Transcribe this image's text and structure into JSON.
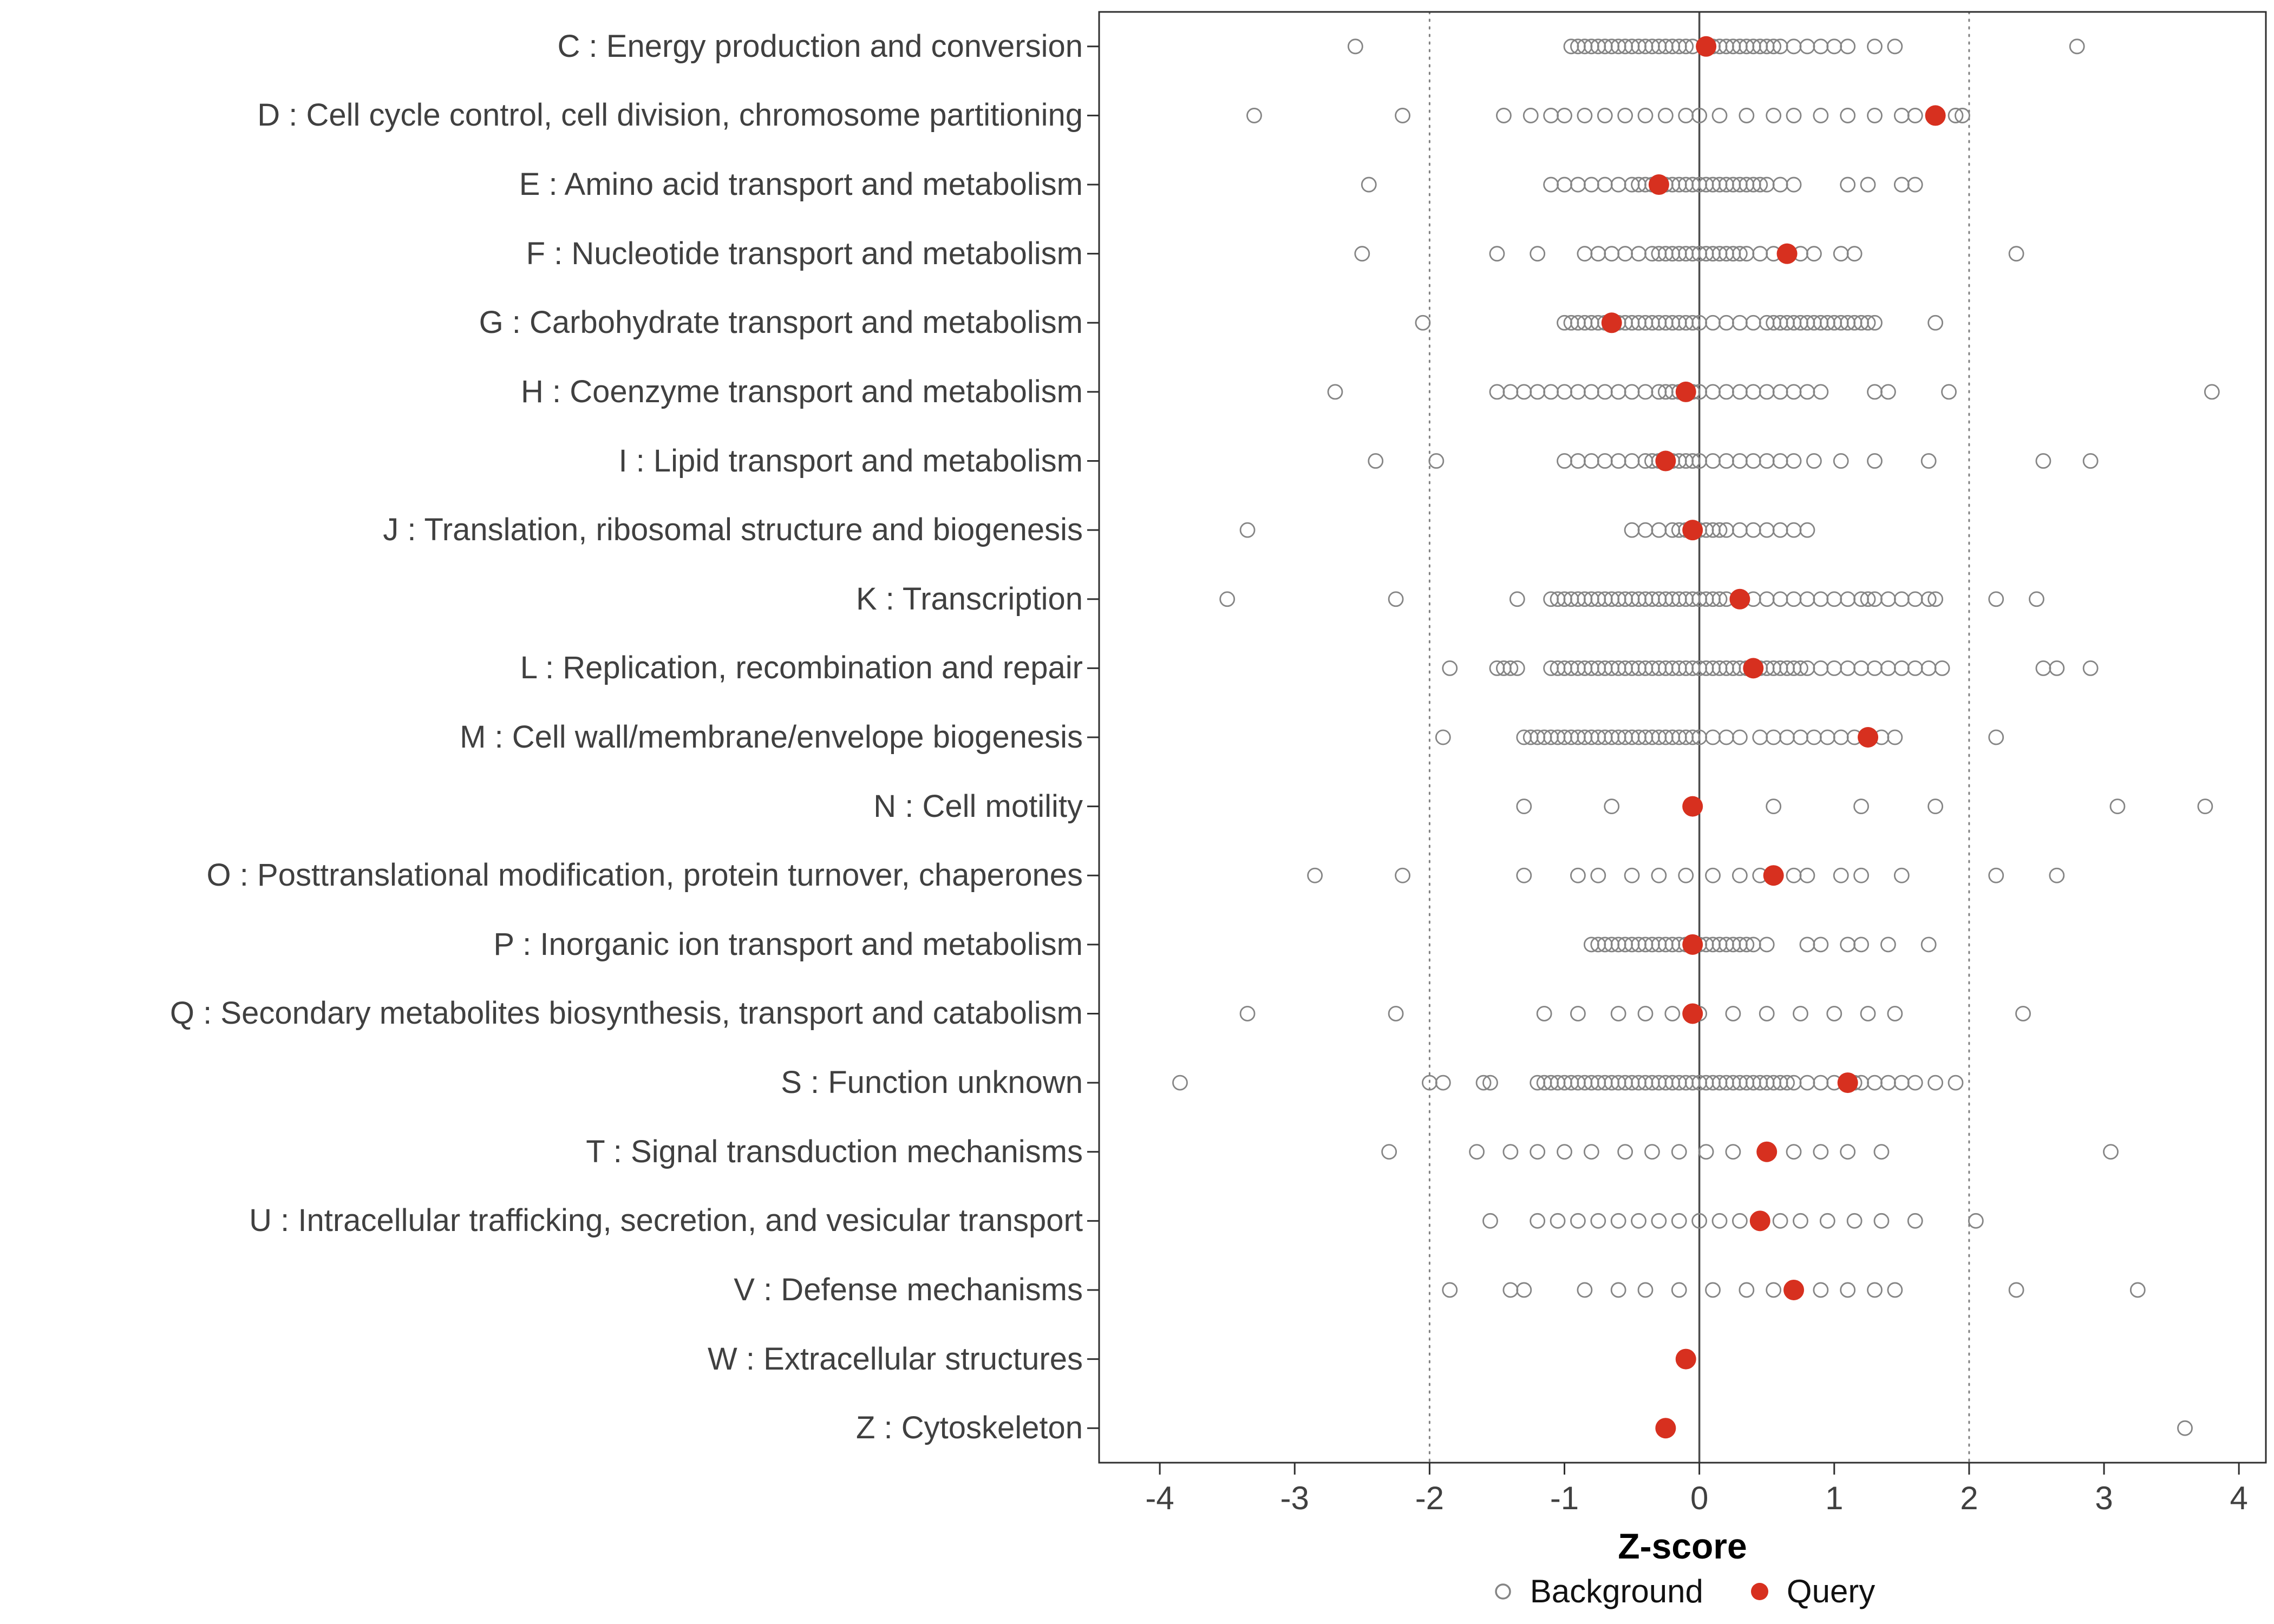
{
  "chart_data": {
    "type": "scatter",
    "title": "",
    "xlabel": "Z-score",
    "ylabel": "",
    "xlim": [
      -4.45,
      4.2
    ],
    "x_ticks": [
      -4,
      -3,
      -2,
      -1,
      0,
      1,
      2,
      3,
      4
    ],
    "reference_lines": {
      "solid": [
        0
      ],
      "dotted": [
        -2,
        2
      ]
    },
    "legend_position": "bottom",
    "grid": "off",
    "colors": {
      "background_point": "#858585",
      "query_point": "#d7301f",
      "reference_line": "#808080",
      "zero_line": "#4a4a4a",
      "panel_border": "#2f2f2f"
    },
    "categories": [
      "C : Energy production and conversion",
      "D : Cell cycle control, cell division, chromosome partitioning",
      "E : Amino acid transport and metabolism",
      "F : Nucleotide transport and metabolism",
      "G : Carbohydrate transport and metabolism",
      "H : Coenzyme transport and metabolism",
      "I : Lipid transport and metabolism",
      "J : Translation, ribosomal structure and biogenesis",
      "K : Transcription",
      "L : Replication, recombination and repair",
      "M : Cell wall/membrane/envelope biogenesis",
      "N : Cell motility",
      "O : Posttranslational modification, protein turnover, chaperones",
      "P : Inorganic ion transport and metabolism",
      "Q : Secondary metabolites biosynthesis, transport and catabolism",
      "S : Function unknown",
      "T : Signal transduction mechanisms",
      "U : Intracellular trafficking, secretion, and vesicular transport",
      "V : Defense mechanisms",
      "W : Extracellular structures",
      "Z : Cytoskeleton"
    ],
    "series": [
      {
        "name": "Background",
        "marker": "open-circle",
        "color": "#858585",
        "points_by_category": [
          [
            -2.55,
            -0.95,
            -0.9,
            -0.85,
            -0.8,
            -0.75,
            -0.7,
            -0.65,
            -0.6,
            -0.55,
            -0.5,
            -0.45,
            -0.4,
            -0.35,
            -0.3,
            -0.25,
            -0.2,
            -0.15,
            -0.1,
            -0.05,
            0.1,
            0.15,
            0.2,
            0.25,
            0.3,
            0.35,
            0.4,
            0.45,
            0.5,
            0.55,
            0.6,
            0.7,
            0.8,
            0.9,
            1.0,
            1.1,
            1.3,
            1.45,
            2.8
          ],
          [
            -3.3,
            -2.2,
            -1.45,
            -1.25,
            -1.1,
            -1.0,
            -0.85,
            -0.7,
            -0.55,
            -0.4,
            -0.25,
            -0.1,
            0.0,
            0.15,
            0.35,
            0.55,
            0.7,
            0.9,
            1.1,
            1.3,
            1.5,
            1.6,
            1.9,
            1.95
          ],
          [
            -2.45,
            -1.1,
            -1.0,
            -0.9,
            -0.8,
            -0.7,
            -0.6,
            -0.5,
            -0.45,
            -0.4,
            -0.35,
            -0.25,
            -0.2,
            -0.15,
            -0.1,
            -0.05,
            0.0,
            0.05,
            0.1,
            0.15,
            0.2,
            0.25,
            0.3,
            0.35,
            0.4,
            0.45,
            0.5,
            0.6,
            0.7,
            1.1,
            1.25,
            1.5,
            1.6
          ],
          [
            -2.5,
            -1.5,
            -1.2,
            -0.85,
            -0.75,
            -0.65,
            -0.55,
            -0.45,
            -0.35,
            -0.3,
            -0.25,
            -0.2,
            -0.15,
            -0.1,
            -0.05,
            0.0,
            0.05,
            0.1,
            0.15,
            0.2,
            0.25,
            0.3,
            0.35,
            0.45,
            0.55,
            0.75,
            0.85,
            1.05,
            1.15,
            2.35
          ],
          [
            -2.05,
            -1.0,
            -0.95,
            -0.9,
            -0.85,
            -0.8,
            -0.75,
            -0.7,
            -0.6,
            -0.55,
            -0.5,
            -0.45,
            -0.4,
            -0.35,
            -0.3,
            -0.25,
            -0.2,
            -0.15,
            -0.1,
            -0.05,
            0.0,
            0.1,
            0.2,
            0.3,
            0.4,
            0.5,
            0.55,
            0.6,
            0.65,
            0.7,
            0.75,
            0.8,
            0.85,
            0.9,
            0.95,
            1.0,
            1.05,
            1.1,
            1.15,
            1.2,
            1.25,
            1.3,
            1.75
          ],
          [
            -2.7,
            -1.5,
            -1.4,
            -1.3,
            -1.2,
            -1.1,
            -1.0,
            -0.9,
            -0.8,
            -0.7,
            -0.6,
            -0.5,
            -0.4,
            -0.3,
            -0.25,
            -0.2,
            -0.15,
            -0.05,
            0.0,
            0.1,
            0.2,
            0.3,
            0.4,
            0.5,
            0.6,
            0.7,
            0.8,
            0.9,
            1.3,
            1.4,
            1.85,
            3.8
          ],
          [
            -2.4,
            -1.95,
            -1.0,
            -0.9,
            -0.8,
            -0.7,
            -0.6,
            -0.5,
            -0.4,
            -0.35,
            -0.3,
            -0.2,
            -0.15,
            -0.1,
            -0.05,
            0.0,
            0.1,
            0.2,
            0.3,
            0.4,
            0.5,
            0.6,
            0.7,
            0.85,
            1.05,
            1.3,
            1.7,
            2.55,
            2.9
          ],
          [
            -3.35,
            -0.5,
            -0.4,
            -0.3,
            -0.2,
            -0.15,
            -0.1,
            0.0,
            0.05,
            0.1,
            0.15,
            0.2,
            0.3,
            0.4,
            0.5,
            0.6,
            0.7,
            0.8
          ],
          [
            -3.5,
            -2.25,
            -1.35,
            -1.1,
            -1.05,
            -1.0,
            -0.95,
            -0.9,
            -0.85,
            -0.8,
            -0.75,
            -0.7,
            -0.65,
            -0.6,
            -0.55,
            -0.5,
            -0.45,
            -0.4,
            -0.35,
            -0.3,
            -0.25,
            -0.2,
            -0.15,
            -0.1,
            -0.05,
            0.0,
            0.05,
            0.1,
            0.15,
            0.2,
            0.4,
            0.5,
            0.6,
            0.7,
            0.8,
            0.9,
            1.0,
            1.1,
            1.2,
            1.25,
            1.3,
            1.4,
            1.5,
            1.6,
            1.7,
            1.75,
            2.2,
            2.5
          ],
          [
            -1.85,
            -1.5,
            -1.45,
            -1.4,
            -1.35,
            -1.1,
            -1.05,
            -1.0,
            -0.95,
            -0.9,
            -0.85,
            -0.8,
            -0.75,
            -0.7,
            -0.65,
            -0.6,
            -0.55,
            -0.5,
            -0.45,
            -0.4,
            -0.35,
            -0.3,
            -0.25,
            -0.2,
            -0.15,
            -0.1,
            -0.05,
            0.0,
            0.05,
            0.1,
            0.15,
            0.2,
            0.25,
            0.3,
            0.35,
            0.45,
            0.5,
            0.55,
            0.6,
            0.65,
            0.7,
            0.75,
            0.8,
            0.9,
            1.0,
            1.1,
            1.2,
            1.3,
            1.4,
            1.5,
            1.6,
            1.7,
            1.8,
            2.55,
            2.65,
            2.9
          ],
          [
            -1.9,
            -1.3,
            -1.25,
            -1.2,
            -1.15,
            -1.1,
            -1.05,
            -1.0,
            -0.95,
            -0.9,
            -0.85,
            -0.8,
            -0.75,
            -0.7,
            -0.65,
            -0.6,
            -0.55,
            -0.5,
            -0.45,
            -0.4,
            -0.35,
            -0.3,
            -0.25,
            -0.2,
            -0.15,
            -0.1,
            -0.05,
            0.0,
            0.1,
            0.2,
            0.3,
            0.45,
            0.55,
            0.65,
            0.75,
            0.85,
            0.95,
            1.05,
            1.15,
            1.35,
            1.45,
            2.2
          ],
          [
            -1.3,
            -0.65,
            0.55,
            1.2,
            1.75,
            3.1,
            3.75
          ],
          [
            -2.85,
            -2.2,
            -1.3,
            -0.9,
            -0.75,
            -0.5,
            -0.3,
            -0.1,
            0.1,
            0.3,
            0.45,
            0.7,
            0.8,
            1.05,
            1.2,
            1.5,
            2.2,
            2.65
          ],
          [
            -0.8,
            -0.75,
            -0.7,
            -0.65,
            -0.6,
            -0.55,
            -0.5,
            -0.45,
            -0.4,
            -0.35,
            -0.3,
            -0.25,
            -0.2,
            -0.15,
            -0.1,
            0.0,
            0.05,
            0.1,
            0.15,
            0.2,
            0.25,
            0.3,
            0.35,
            0.4,
            0.5,
            0.8,
            0.9,
            1.1,
            1.2,
            1.4,
            1.7
          ],
          [
            -3.35,
            -2.25,
            -1.15,
            -0.9,
            -0.6,
            -0.4,
            -0.2,
            0.0,
            0.25,
            0.5,
            0.75,
            1.0,
            1.25,
            1.45,
            2.4
          ],
          [
            -3.85,
            -2.0,
            -1.9,
            -1.6,
            -1.55,
            -1.2,
            -1.15,
            -1.1,
            -1.05,
            -1.0,
            -0.95,
            -0.9,
            -0.85,
            -0.8,
            -0.75,
            -0.7,
            -0.65,
            -0.6,
            -0.55,
            -0.5,
            -0.45,
            -0.4,
            -0.35,
            -0.3,
            -0.25,
            -0.2,
            -0.15,
            -0.1,
            -0.05,
            0.0,
            0.05,
            0.1,
            0.15,
            0.2,
            0.25,
            0.3,
            0.35,
            0.4,
            0.45,
            0.5,
            0.55,
            0.6,
            0.65,
            0.7,
            0.8,
            0.9,
            1.0,
            1.15,
            1.2,
            1.3,
            1.4,
            1.5,
            1.6,
            1.75,
            1.9
          ],
          [
            -2.3,
            -1.65,
            -1.4,
            -1.2,
            -1.0,
            -0.8,
            -0.55,
            -0.35,
            -0.15,
            0.05,
            0.25,
            0.7,
            0.9,
            1.1,
            1.35,
            3.05
          ],
          [
            -1.55,
            -1.2,
            -1.05,
            -0.9,
            -0.75,
            -0.6,
            -0.45,
            -0.3,
            -0.15,
            0.0,
            0.15,
            0.3,
            0.6,
            0.75,
            0.95,
            1.15,
            1.35,
            1.6,
            2.05
          ],
          [
            -1.85,
            -1.4,
            -1.3,
            -0.85,
            -0.6,
            -0.4,
            -0.15,
            0.1,
            0.35,
            0.55,
            0.9,
            1.1,
            1.3,
            1.45,
            2.35,
            3.25
          ],
          [],
          [
            3.6
          ]
        ]
      },
      {
        "name": "Query",
        "marker": "filled-circle",
        "color": "#d7301f",
        "values": [
          0.05,
          1.75,
          -0.3,
          0.65,
          -0.65,
          -0.1,
          -0.25,
          -0.05,
          0.3,
          0.4,
          1.25,
          -0.05,
          0.55,
          -0.05,
          -0.05,
          1.1,
          0.5,
          0.45,
          0.7,
          -0.1,
          -0.25
        ]
      }
    ]
  }
}
